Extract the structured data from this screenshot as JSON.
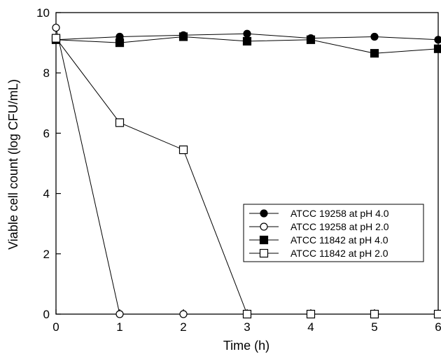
{
  "chart_data": {
    "type": "line",
    "xlabel": "Time (h)",
    "ylabel": "Viable cell count (log CFU/mL)",
    "xlim": [
      0,
      6
    ],
    "ylim": [
      0,
      10
    ],
    "x_ticks": [
      0,
      1,
      2,
      3,
      4,
      5,
      6
    ],
    "y_ticks": [
      0,
      2,
      4,
      6,
      8,
      10
    ],
    "grid": false,
    "legend_position": "center-right",
    "series": [
      {
        "name": "ATCC 19258 at pH 4.0",
        "marker": "circle-filled",
        "x": [
          0,
          1,
          2,
          3,
          4,
          5,
          6
        ],
        "y": [
          9.1,
          9.2,
          9.25,
          9.3,
          9.15,
          9.2,
          9.1
        ]
      },
      {
        "name": "ATCC 19258 at pH 2.0",
        "marker": "circle-open",
        "x": [
          0,
          1,
          2,
          3,
          4,
          5,
          6
        ],
        "y": [
          9.5,
          0,
          0,
          0,
          0,
          0,
          0
        ]
      },
      {
        "name": "ATCC 11842 at pH 4.0",
        "marker": "square-filled",
        "x": [
          0,
          1,
          2,
          3,
          4,
          5,
          6
        ],
        "y": [
          9.1,
          9.0,
          9.2,
          9.05,
          9.1,
          8.65,
          8.8
        ]
      },
      {
        "name": "ATCC 11842 at pH 2.0",
        "marker": "square-open",
        "x": [
          0,
          1,
          2,
          3,
          4,
          5,
          6
        ],
        "y": [
          9.15,
          6.35,
          5.45,
          0,
          0,
          0,
          0
        ]
      }
    ],
    "colors": {
      "line": "#000000",
      "fill": "#000000",
      "open_fill": "#ffffff"
    }
  }
}
